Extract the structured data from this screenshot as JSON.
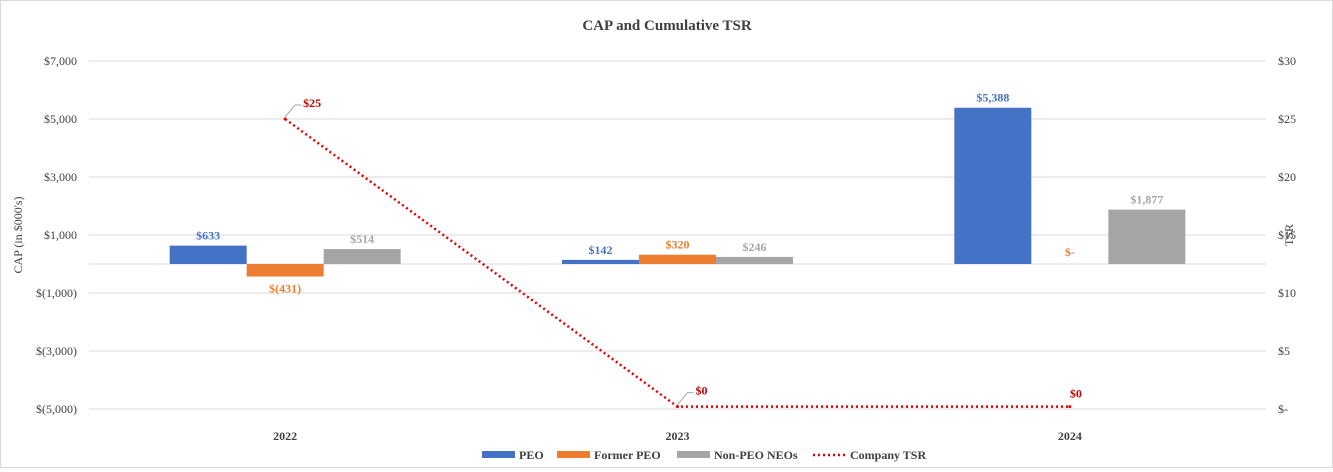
{
  "chart_data": {
    "type": "bar",
    "title": "CAP and Cumulative TSR",
    "categories": [
      "2022",
      "2023",
      "2024"
    ],
    "ylabel": "CAP (in $000's)",
    "y2label": "TSR",
    "ylim": [
      -5000,
      7000
    ],
    "y2lim": [
      0,
      30
    ],
    "yticks": [
      -5000,
      -3000,
      -1000,
      1000,
      3000,
      5000,
      7000
    ],
    "ytick_labels": [
      "$(5,000)",
      "$(3,000)",
      "$(1,000)",
      "$1,000",
      "$3,000",
      "$5,000",
      "$7,000"
    ],
    "y2ticks": [
      0,
      5,
      10,
      15,
      20,
      25,
      30
    ],
    "y2tick_labels": [
      "$-",
      "$5",
      "$10",
      "$15",
      "$20",
      "$25",
      "$30"
    ],
    "grid": true,
    "legend_position": "bottom",
    "series": [
      {
        "name": "PEO",
        "type": "bar",
        "color": "#4472c4",
        "values": [
          633,
          142,
          5388
        ],
        "labels": [
          "$633",
          "$142",
          "$5,388"
        ]
      },
      {
        "name": "Former PEO",
        "type": "bar",
        "color": "#ed7d31",
        "values": [
          -431,
          320,
          0
        ],
        "labels": [
          "$(431)",
          "$320",
          "$-"
        ]
      },
      {
        "name": "Non-PEO NEOs",
        "type": "bar",
        "color": "#a5a5a5",
        "values": [
          514,
          246,
          1877
        ],
        "labels": [
          "$514",
          "$246",
          "$1,877"
        ]
      },
      {
        "name": "Company TSR",
        "type": "line",
        "axis": "secondary",
        "color": "#e00000",
        "label_color": "#c00000",
        "values": [
          25,
          0.2,
          0.2
        ],
        "labels": [
          "$25",
          "$0",
          "$0"
        ]
      }
    ]
  }
}
